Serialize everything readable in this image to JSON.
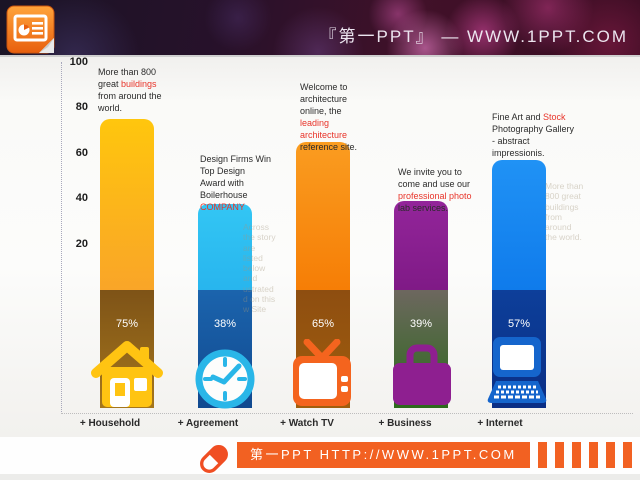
{
  "header": {
    "title": "『第一PPT』 —  WWW.1PPT.COM"
  },
  "chart_data": {
    "type": "bar",
    "title": "",
    "xlabel": "",
    "ylabel": "",
    "categories": [
      "+ Household",
      "+ Agreement",
      "+ Watch TV",
      "+ Business",
      "+ Internet"
    ],
    "values": [
      75,
      38,
      65,
      39,
      57
    ],
    "value_labels": [
      "75%",
      "38%",
      "65%",
      "39%",
      "57%"
    ],
    "y_ticks": [
      100,
      80,
      60,
      40,
      20
    ],
    "ylim": [
      0,
      100
    ],
    "grid": false,
    "legend": "none",
    "icons": [
      "house-icon",
      "clock-icon",
      "tv-icon",
      "briefcase-icon",
      "computer-icon"
    ],
    "icon_colors": [
      "#ffc412",
      "#29b6e8",
      "#f4641e",
      "#8e1f90",
      "#1565cc"
    ],
    "bar_styles": [
      {
        "top": [
          "#ffc60d",
          "#f9a528"
        ],
        "base": [
          "#7e5317",
          "#a5761c"
        ]
      },
      {
        "top": [
          "#33c6f4",
          "#28b5ee"
        ],
        "base": [
          "#1b64ad",
          "#11498f"
        ]
      },
      {
        "top": [
          "#fa9c20",
          "#f67e06"
        ],
        "base": [
          "#8e4e10",
          "#a15e0d"
        ]
      },
      {
        "top": [
          "#93259a",
          "#7f1a86"
        ],
        "base": [
          "#6d675f",
          "#2c6a1b"
        ]
      },
      {
        "top": [
          "#2092f5",
          "#0f7beb"
        ],
        "base": [
          "#0d3f9a",
          "#0a2e85"
        ]
      }
    ],
    "annotations": [
      {
        "segments": [
          {
            "t": "More than 800 great ",
            "red": false
          },
          {
            "t": "buildings",
            "red": true
          },
          {
            "t": " from around the world.",
            "red": false
          }
        ]
      },
      {
        "segments": [
          {
            "t": "Design Firms Win Top Design Award with Boilerhouse ",
            "red": false
          },
          {
            "t": "COMPANY",
            "red": true
          }
        ]
      },
      {
        "segments": [
          {
            "t": "Welcome to architecture online, the ",
            "red": false
          },
          {
            "t": "leading architecture",
            "red": true
          },
          {
            "t": " reference site.",
            "red": false
          }
        ]
      },
      {
        "segments": [
          {
            "t": "We invite you to come and use our ",
            "red": false
          },
          {
            "t": "professional photo",
            "red": true
          },
          {
            "t": " lab services.",
            "red": false
          }
        ]
      },
      {
        "segments": [
          {
            "t": "Fine Art and ",
            "red": false
          },
          {
            "t": "Stock",
            "red": true
          },
          {
            "t": " Photography Gallery - abstract impressionis.",
            "red": false
          }
        ]
      }
    ]
  },
  "ghost_text": {
    "blocks": [
      {
        "lines": [
          "Across",
          "the story",
          "are",
          "listed",
          "below",
          "and",
          "ustrated",
          "d on this",
          "w Site"
        ]
      },
      {
        "lines": [
          "More than",
          "800 great",
          "buildings",
          "from",
          "around",
          "the world."
        ]
      }
    ]
  },
  "footer": {
    "site_label": "第一PPT HTTP://WWW.1PPT.COM"
  },
  "colors": {
    "accent_orange": "#f26122",
    "red_text": "#e8342a"
  }
}
